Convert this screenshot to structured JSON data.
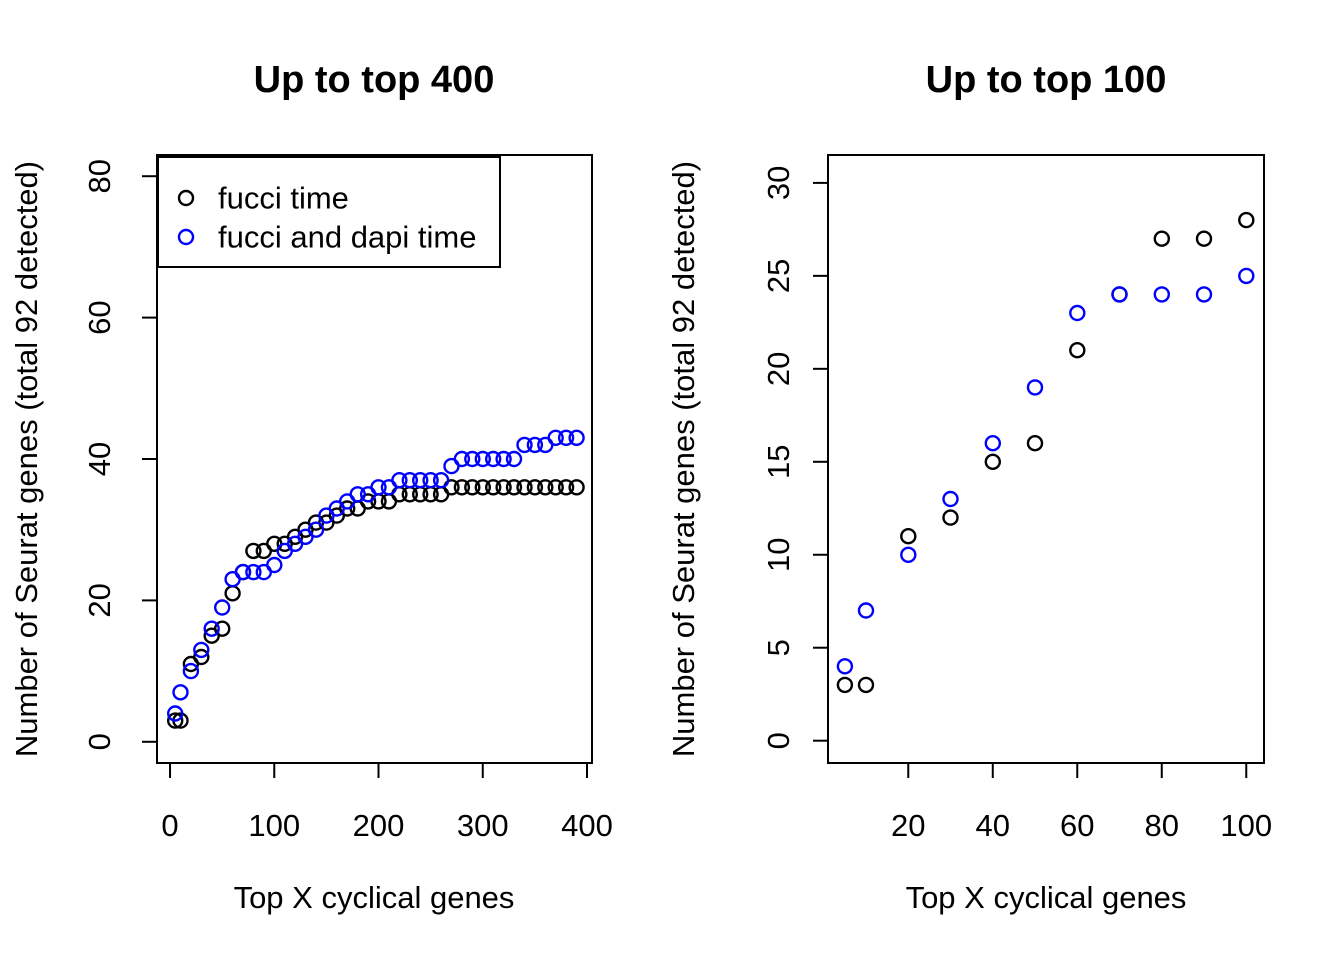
{
  "figure": {
    "background": "#ffffff",
    "text_color": "#000000"
  },
  "legend": {
    "position": "topleft"
  },
  "chart_data": [
    {
      "type": "scatter",
      "title": "Up to top 400",
      "xlabel": "Top X cyclical genes",
      "ylabel": "Number of Seurat genes (total 92 detected)",
      "marker": "open-circle",
      "grid": false,
      "legend_position": "topleft",
      "xlim": [
        -12.5,
        404.8
      ],
      "ylim": [
        -3,
        83
      ],
      "xticks": [
        0,
        100,
        200,
        300,
        400
      ],
      "yticks": [
        0,
        20,
        40,
        60,
        80
      ],
      "x": [
        5,
        10,
        20,
        30,
        40,
        50,
        60,
        70,
        80,
        90,
        100,
        110,
        120,
        130,
        140,
        150,
        160,
        170,
        180,
        190,
        200,
        210,
        220,
        230,
        240,
        250,
        260,
        270,
        280,
        290,
        300,
        310,
        320,
        330,
        340,
        350,
        360,
        370,
        380,
        390
      ],
      "series": [
        {
          "name": "fucci time",
          "color": "#000000",
          "values": [
            3,
            3,
            11,
            12,
            15,
            16,
            21,
            24,
            27,
            27,
            28,
            28,
            29,
            30,
            31,
            31,
            32,
            33,
            33,
            34,
            34,
            34,
            35,
            35,
            35,
            35,
            35,
            36,
            36,
            36,
            36,
            36,
            36,
            36,
            36,
            36,
            36,
            36,
            36,
            36
          ]
        },
        {
          "name": "fucci and dapi time",
          "color": "#0000ff",
          "values": [
            4,
            7,
            10,
            13,
            16,
            19,
            23,
            24,
            24,
            24,
            25,
            27,
            28,
            29,
            30,
            32,
            33,
            34,
            35,
            35,
            36,
            36,
            37,
            37,
            37,
            37,
            37,
            39,
            40,
            40,
            40,
            40,
            40,
            40,
            42,
            42,
            42,
            43,
            43,
            43
          ]
        }
      ]
    },
    {
      "type": "scatter",
      "title": "Up to top 100",
      "xlabel": "Top X cyclical genes",
      "ylabel": "Number of Seurat genes (total 92 detected)",
      "marker": "open-circle",
      "grid": false,
      "legend_position": "none",
      "xlim": [
        1,
        104.2
      ],
      "ylim": [
        -1.2,
        31.5
      ],
      "xticks": [
        20,
        40,
        60,
        80,
        100
      ],
      "yticks": [
        0,
        5,
        10,
        15,
        20,
        25,
        30
      ],
      "x": [
        5,
        10,
        20,
        30,
        40,
        50,
        60,
        70,
        80,
        90,
        100
      ],
      "series": [
        {
          "name": "fucci time",
          "color": "#000000",
          "values": [
            3,
            3,
            11,
            12,
            15,
            16,
            21,
            24,
            27,
            27,
            28
          ]
        },
        {
          "name": "fucci and dapi time",
          "color": "#0000ff",
          "values": [
            4,
            7,
            10,
            13,
            16,
            19,
            23,
            24,
            24,
            24,
            25
          ]
        }
      ]
    }
  ]
}
